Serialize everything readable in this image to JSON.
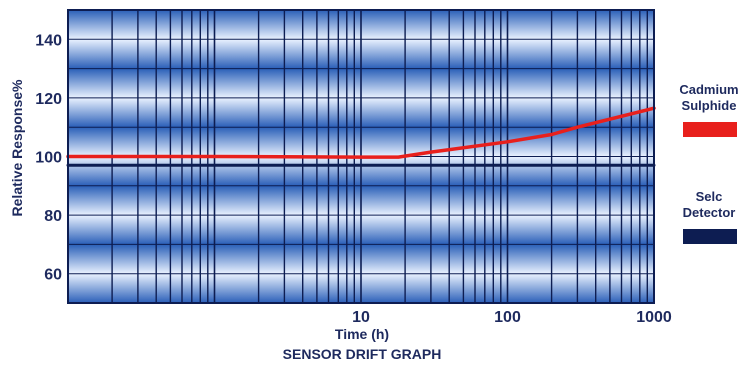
{
  "chart_data": {
    "type": "line",
    "title": "SENSOR DRIFT GRAPH",
    "xlabel": "Time (h)",
    "ylabel": "Relative Response%",
    "x_scale": "log",
    "xlim": [
      0.1,
      1000
    ],
    "ylim": [
      50,
      150
    ],
    "x_ticks": [
      {
        "value": 10,
        "label": "10"
      },
      {
        "value": 100,
        "label": "100"
      },
      {
        "value": 1000,
        "label": "1000"
      }
    ],
    "y_ticks": [
      {
        "value": 60,
        "label": "60"
      },
      {
        "value": 80,
        "label": "80"
      },
      {
        "value": 100,
        "label": "100"
      },
      {
        "value": 120,
        "label": "120"
      },
      {
        "value": 140,
        "label": "140"
      }
    ],
    "grid": true,
    "legend_position": "right",
    "series": [
      {
        "name": "Cadmium Sulphide",
        "color": "#e8201c",
        "x": [
          0.1,
          1,
          10,
          18,
          30,
          100,
          200,
          300,
          1000
        ],
        "y": [
          100,
          100,
          99.8,
          99.8,
          101.5,
          105,
          107.5,
          110,
          116.5
        ]
      },
      {
        "name": "Selc Detector",
        "color": "#0d1d52",
        "x": [
          0.1,
          1,
          10,
          100,
          1000
        ],
        "y": [
          97,
          97,
          97,
          97,
          97
        ]
      }
    ],
    "legend": [
      {
        "lines": [
          "Cadmium",
          "Sulphide"
        ],
        "color": "#e8201c"
      },
      {
        "lines": [
          "Selc",
          "Detector"
        ],
        "color": "#0d1d52"
      }
    ]
  }
}
